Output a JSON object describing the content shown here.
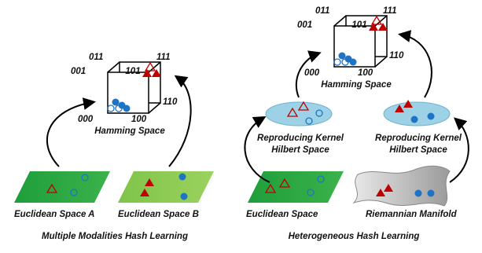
{
  "left": {
    "cube": {
      "vertices": [
        "011",
        "111",
        "001",
        "101",
        "000",
        "100",
        "110"
      ],
      "title": "Hamming Space"
    },
    "spaces": [
      "Euclidean Space A",
      "Euclidean Space B"
    ],
    "caption": "Multiple Modalities Hash Learning"
  },
  "right": {
    "cube": {
      "vertices": [
        "011",
        "111",
        "001",
        "101",
        "000",
        "100",
        "110"
      ],
      "title": "Hamming Space"
    },
    "kernels": [
      [
        "Reproducing Kernel",
        "Hilbert Space"
      ],
      [
        "Reproducing Kernel",
        "Hilbert Space"
      ]
    ],
    "spaces": [
      "Euclidean Space",
      "Riemannian Manifold"
    ],
    "caption": "Heterogeneous Hash Learning"
  }
}
